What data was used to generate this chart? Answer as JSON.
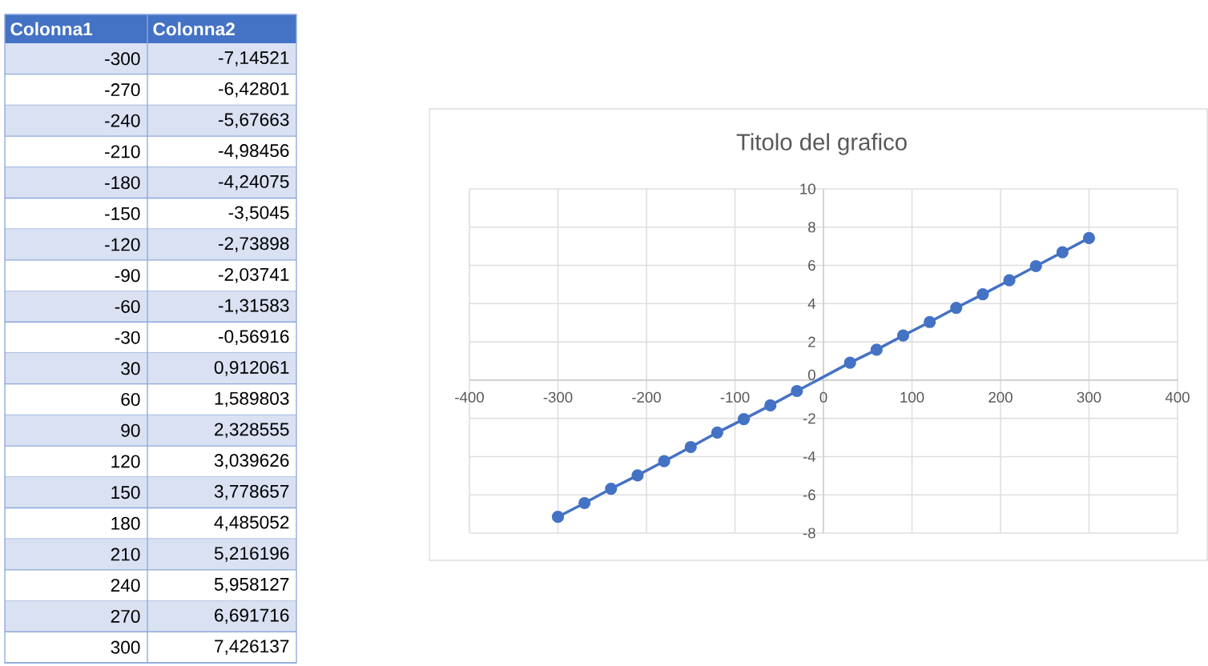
{
  "chart_data": [
    {
      "type": "other",
      "annotations": [
        "Colonna1",
        "Colonna2",
        "-300",
        "-7,14521",
        "-270",
        "-6,42801",
        "-240",
        "-5,67663",
        "-210",
        "-4,98456",
        "-180",
        "-4,24075",
        "-150",
        "-3,5045",
        "-120",
        "-2,73898",
        "-90",
        "-2,03741",
        "-60",
        "-1,31583",
        "-30",
        "-0,56916",
        "30",
        "0,912061",
        "60",
        "1,589803",
        "90",
        "2,328555",
        "120",
        "3,039626",
        "150",
        "3,778657",
        "180",
        "4,485052",
        "210",
        "5,216196",
        "240",
        "5,958127",
        "270",
        "6,691716",
        "300",
        "7,426137"
      ]
    },
    {
      "type": "line",
      "title": "Titolo del grafico",
      "x": [
        -300,
        -270,
        -240,
        -210,
        -180,
        -150,
        -120,
        -90,
        -60,
        -30,
        30,
        60,
        90,
        120,
        150,
        180,
        210,
        240,
        270,
        300
      ],
      "values": [
        -7.15,
        -6.43,
        -5.68,
        -4.98,
        -4.24,
        -3.5,
        -2.74,
        -2.04,
        -1.32,
        -0.57,
        0.91,
        1.59,
        2.33,
        3.04,
        3.78,
        4.49,
        5.22,
        5.96,
        6.69,
        7.43
      ],
      "color": "#4472c4",
      "marker": "circle",
      "grid": true,
      "xlim": [
        -400,
        400
      ],
      "ylim": [
        -8,
        10
      ],
      "xticks": [
        -400,
        -300,
        -200,
        -100,
        0,
        100,
        200,
        300,
        400
      ],
      "yticks": [
        -8,
        -6,
        -4,
        -2,
        0,
        2,
        4,
        6,
        8,
        10
      ]
    }
  ]
}
